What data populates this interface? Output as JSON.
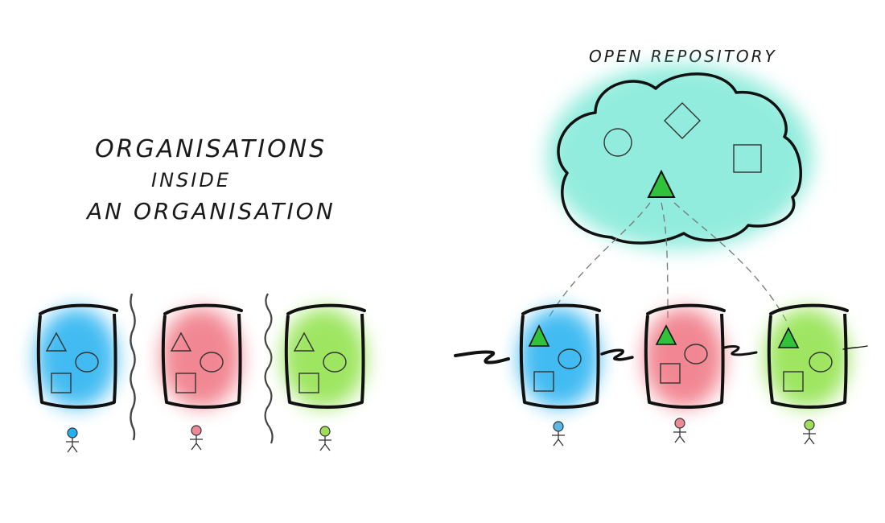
{
  "left_title": {
    "line1": "ORGANISATIONS",
    "line2": "INSIDE",
    "line3": "AN ORGANISATION"
  },
  "right_title": "OPEN REPOSITORY",
  "colors": {
    "blue": "#22b0f0",
    "red": "#ee6a78",
    "green": "#86e03a",
    "cloud": "#6ee6d2",
    "triangle": "#2fc23a"
  }
}
